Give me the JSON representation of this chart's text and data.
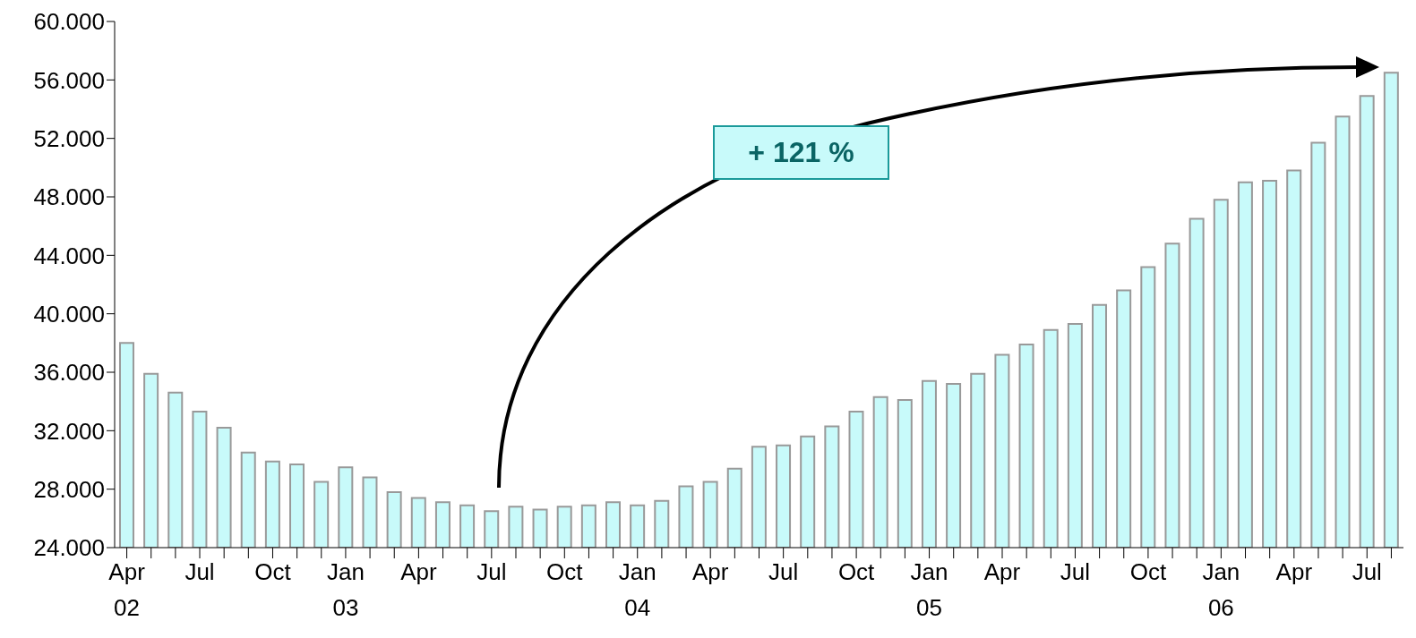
{
  "chart_data": {
    "type": "bar",
    "categories": [
      "Apr\n02",
      null,
      null,
      "Jul",
      null,
      null,
      "Oct",
      null,
      null,
      "Jan\n03",
      null,
      null,
      "Apr",
      null,
      null,
      "Jul",
      null,
      null,
      "Oct",
      null,
      null,
      "Jan\n04",
      null,
      null,
      "Apr",
      null,
      null,
      "Jul",
      null,
      null,
      "Oct",
      null,
      null,
      "Jan\n05",
      null,
      null,
      "Apr",
      null,
      null,
      "Jul",
      null,
      null,
      "Oct",
      null,
      null,
      "Jan\n06",
      null,
      null,
      "Apr",
      null,
      null,
      "Jul",
      null
    ],
    "values": [
      38000,
      35900,
      34600,
      33300,
      32200,
      30500,
      29900,
      29700,
      28500,
      29500,
      28800,
      27800,
      27400,
      27100,
      26900,
      26500,
      26800,
      26600,
      26800,
      26900,
      27100,
      26900,
      27200,
      28200,
      28500,
      29400,
      30900,
      31000,
      31600,
      32300,
      33300,
      34300,
      34100,
      35400,
      35200,
      35900,
      37200,
      37900,
      38900,
      39300,
      40600,
      41600,
      43200,
      44800,
      46500,
      47800,
      49000,
      49100,
      49800,
      51700,
      53500,
      54900,
      56500
    ],
    "color": "#c8fafa",
    "ylim": [
      24000,
      60000
    ],
    "yticks": [
      {
        "value": 24000,
        "label": "24.000"
      },
      {
        "value": 28000,
        "label": "28.000"
      },
      {
        "value": 32000,
        "label": "32.000"
      },
      {
        "value": 36000,
        "label": "36.000"
      },
      {
        "value": 40000,
        "label": "40.000"
      },
      {
        "value": 44000,
        "label": "44.000"
      },
      {
        "value": 48000,
        "label": "48.000"
      },
      {
        "value": 52000,
        "label": "52.000"
      },
      {
        "value": 56000,
        "label": "56.000"
      },
      {
        "value": 60000,
        "label": "60.000"
      }
    ],
    "annotations": [
      "+ 121 %"
    ],
    "grid": false,
    "legend": false
  }
}
